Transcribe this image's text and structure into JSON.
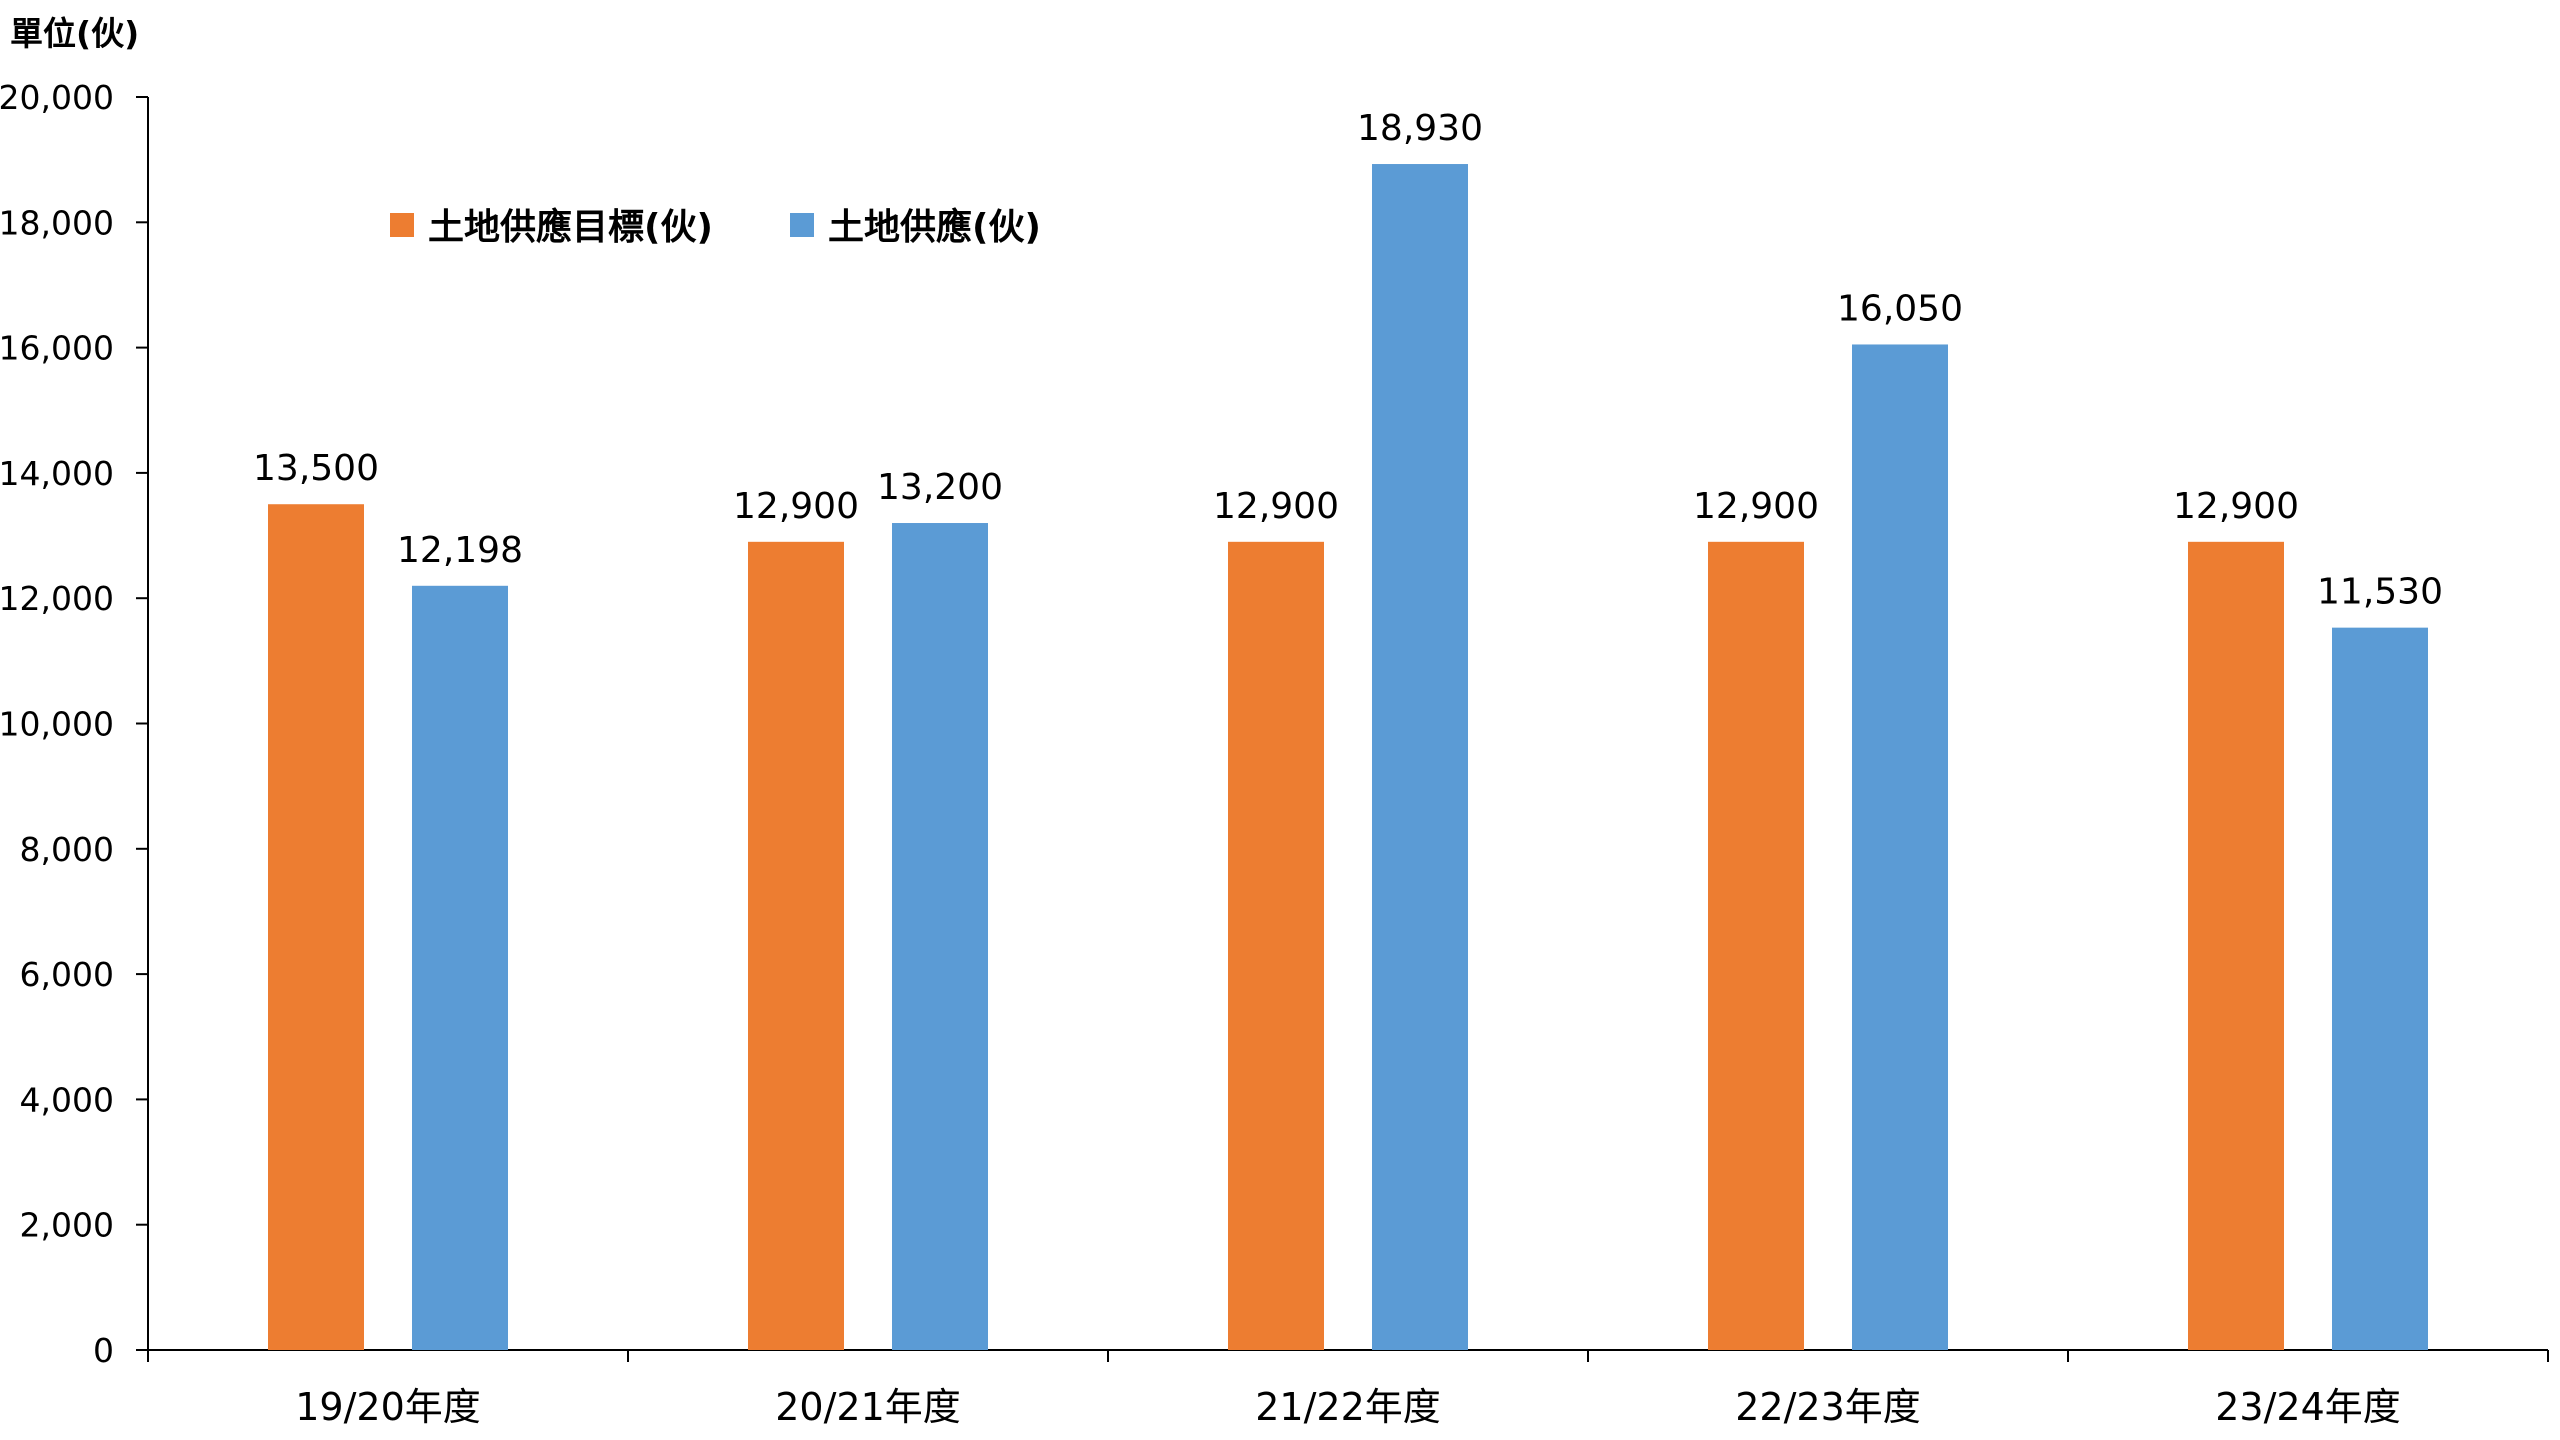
{
  "chart_data": {
    "type": "bar",
    "unit_label": "單位(伙)",
    "categories": [
      "19/20年度",
      "20/21年度",
      "21/22年度",
      "22/23年度",
      "23/24年度"
    ],
    "series": [
      {
        "name": "土地供應目標(伙)",
        "color": "#ED7D31",
        "values": [
          13500,
          12900,
          12900,
          12900,
          12900
        ],
        "labels": [
          "13,500",
          "12,900",
          "12,900",
          "12,900",
          "12,900"
        ]
      },
      {
        "name": "土地供應(伙)",
        "color": "#5B9BD5",
        "values": [
          12198,
          13200,
          18930,
          16050,
          11530
        ],
        "labels": [
          "12,198",
          "13,200",
          "18,930",
          "16,050",
          "11,530"
        ]
      }
    ],
    "ylim": [
      0,
      20000
    ],
    "yticks": [
      0,
      2000,
      4000,
      6000,
      8000,
      10000,
      12000,
      14000,
      16000,
      18000,
      20000
    ],
    "ytick_labels": [
      "0",
      "2,000",
      "4,000",
      "6,000",
      "8,000",
      "10,000",
      "12,000",
      "14,000",
      "16,000",
      "18,000",
      "20,000"
    ],
    "grid": false,
    "legend_position": "top-left"
  }
}
